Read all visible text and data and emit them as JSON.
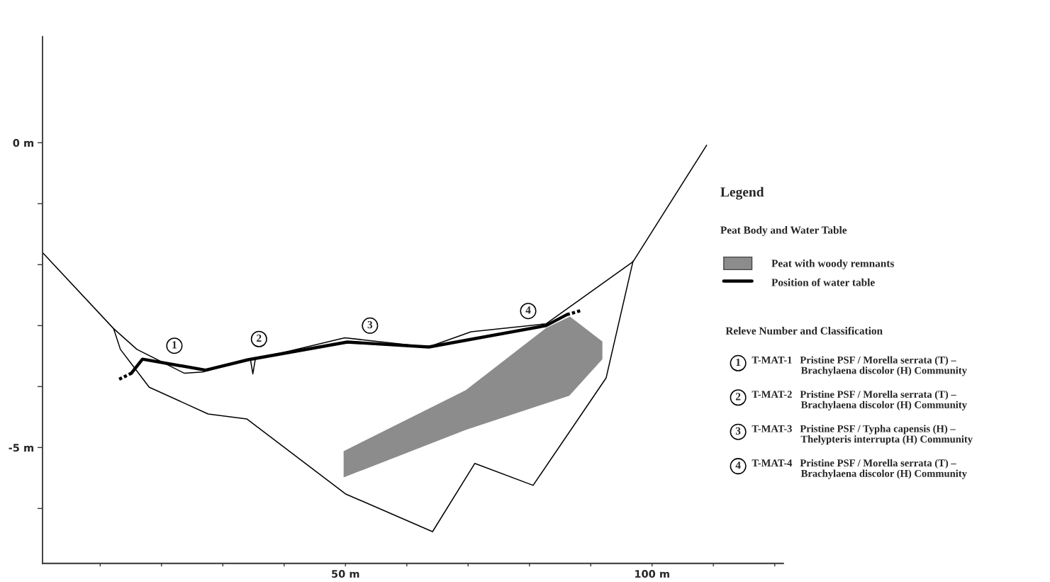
{
  "chart_data": {
    "type": "line",
    "xlim": [
      0.6,
      121.4
    ],
    "ylim": [
      -6.9,
      1.74
    ],
    "xticks": [
      {
        "value": 10,
        "label": null
      },
      {
        "value": 20,
        "label": null
      },
      {
        "value": 30,
        "label": null
      },
      {
        "value": 40,
        "label": null
      },
      {
        "value": 50,
        "label": "50 m"
      },
      {
        "value": 60,
        "label": null
      },
      {
        "value": 70,
        "label": null
      },
      {
        "value": 80,
        "label": null
      },
      {
        "value": 90,
        "label": null
      },
      {
        "value": 100,
        "label": "100 m"
      },
      {
        "value": 110,
        "label": null
      },
      {
        "value": 120,
        "label": null
      }
    ],
    "yticks": [
      {
        "value": 0,
        "label": "0 m"
      },
      {
        "value": -1,
        "label": null
      },
      {
        "value": -2,
        "label": null
      },
      {
        "value": -3,
        "label": null
      },
      {
        "value": -4,
        "label": null
      },
      {
        "value": -5,
        "label": "-5 m"
      },
      {
        "value": -6,
        "label": null
      }
    ],
    "legend": "right",
    "legend_title": "Legend",
    "series": [
      {
        "type": "area",
        "name": "Peat with woody remnants",
        "color": "#8c8c8c",
        "x": [
          49.7,
          69.6,
          82.7,
          86.6,
          91.9,
          91.9,
          86.5,
          69.6,
          49.7
        ],
        "values": [
          -5.06,
          -4.06,
          -3.04,
          -2.85,
          -3.26,
          -3.55,
          -4.15,
          -4.71,
          -5.49
        ]
      },
      {
        "name": "Position of water table",
        "color": "#000000",
        "x": [
          15.1,
          16.9,
          27.2,
          34.1,
          50.3,
          63.6,
          82.7,
          86.1
        ],
        "values": [
          -3.78,
          -3.55,
          -3.73,
          -3.56,
          -3.27,
          -3.35,
          -3.0,
          -2.82
        ]
      },
      {
        "color": "#000000",
        "line_style": "dashed",
        "x": [
          13.1,
          15.1
        ],
        "values": [
          -3.88,
          -3.78
        ]
      },
      {
        "color": "#000000",
        "line_style": "dashed",
        "x": [
          86.1,
          88.5
        ],
        "values": [
          -2.82,
          -2.75
        ]
      },
      {
        "color": "#000000",
        "x": [
          0.6,
          12.2,
          16.0,
          23.7,
          26.7,
          34.5,
          34.9,
          35.3,
          49.9,
          63.5,
          70.5,
          82.7,
          96.9,
          108.9
        ],
        "values": [
          -1.8,
          -3.05,
          -3.39,
          -3.78,
          -3.76,
          -3.55,
          -3.79,
          -3.55,
          -3.2,
          -3.35,
          -3.1,
          -2.97,
          -1.95,
          -0.04
        ]
      },
      {
        "color": "#000000",
        "x": [
          12.2,
          13.3,
          18.0,
          27.6,
          33.9,
          50.0,
          64.2,
          71.1,
          80.6,
          92.5,
          96.9
        ],
        "values": [
          -3.05,
          -3.39,
          -4.01,
          -4.45,
          -4.53,
          -5.76,
          -6.38,
          -5.26,
          -5.62,
          -3.86,
          -1.94
        ]
      }
    ],
    "annotations": [
      {
        "text": "1",
        "x": 22.1,
        "y": -3.33
      },
      {
        "text": "2",
        "x": 35.9,
        "y": -3.22
      },
      {
        "text": "3",
        "x": 54.0,
        "y": -3.0
      },
      {
        "text": "4",
        "x": 79.8,
        "y": -2.76
      },
      "Peat Body and Water Table",
      "Releve Number and Classification",
      "T-MAT-1   Pristine PSF / Morella serrata (T) –\n                   Brachylaena discolor (H) Community",
      "T-MAT-2   Pristine PSF / Morella serrata (T) –\n                   Brachylaena discolor (H) Community",
      "T-MAT-3   Pristine PSF / Typha capensis (H) –\n                   Thelypteris interrupta (H) Community",
      "T-MAT-4   Pristine PSF / Morella serrata (T) –\n                   Brachylaena discolor (H) Community"
    ]
  }
}
